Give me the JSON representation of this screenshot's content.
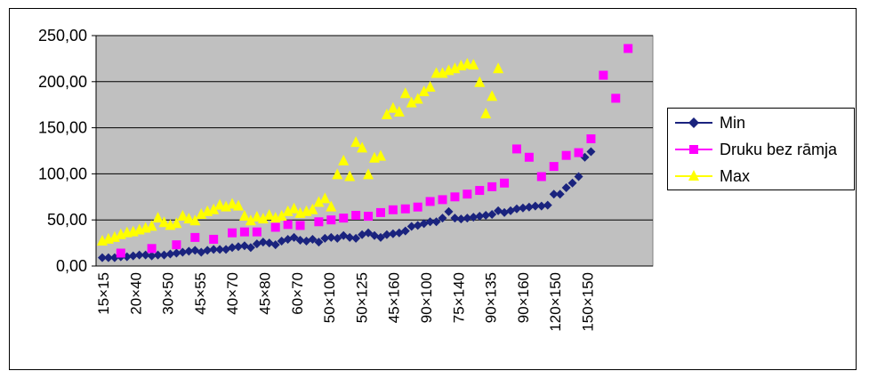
{
  "chart_data": {
    "type": "scatter",
    "title": "",
    "xlabel": "",
    "ylabel": "",
    "ylim": [
      0,
      250
    ],
    "y_ticks": [
      "0,00",
      "50,00",
      "100,00",
      "150,00",
      "200,00",
      "250,00"
    ],
    "x_tick_labels": [
      "15×15",
      "20×40",
      "30×50",
      "45×55",
      "40×70",
      "45×80",
      "60×70",
      "50×100",
      "50×125",
      "45×160",
      "90×100",
      "75×140",
      "90×135",
      "90×160",
      "120×150",
      "150×150"
    ],
    "grid": true,
    "legend_position": "right",
    "series": [
      {
        "name": "Min",
        "color": "#1a237e",
        "marker": "diamond",
        "points": [
          [
            1,
            9
          ],
          [
            2,
            9
          ],
          [
            3,
            9
          ],
          [
            4,
            10
          ],
          [
            5,
            10
          ],
          [
            6,
            11
          ],
          [
            7,
            12
          ],
          [
            8,
            12
          ],
          [
            9,
            11
          ],
          [
            10,
            12
          ],
          [
            11,
            12
          ],
          [
            12,
            13
          ],
          [
            13,
            14
          ],
          [
            14,
            15
          ],
          [
            15,
            16
          ],
          [
            16,
            17
          ],
          [
            17,
            15
          ],
          [
            18,
            17
          ],
          [
            19,
            18
          ],
          [
            20,
            18
          ],
          [
            21,
            18
          ],
          [
            22,
            20
          ],
          [
            23,
            21
          ],
          [
            24,
            22
          ],
          [
            25,
            20
          ],
          [
            26,
            24
          ],
          [
            27,
            26
          ],
          [
            28,
            25
          ],
          [
            29,
            23
          ],
          [
            30,
            27
          ],
          [
            31,
            29
          ],
          [
            32,
            31
          ],
          [
            33,
            28
          ],
          [
            34,
            27
          ],
          [
            35,
            29
          ],
          [
            36,
            26
          ],
          [
            37,
            30
          ],
          [
            38,
            31
          ],
          [
            39,
            30
          ],
          [
            40,
            33
          ],
          [
            41,
            31
          ],
          [
            42,
            30
          ],
          [
            43,
            34
          ],
          [
            44,
            36
          ],
          [
            45,
            33
          ],
          [
            46,
            31
          ],
          [
            47,
            34
          ],
          [
            48,
            35
          ],
          [
            49,
            36
          ],
          [
            50,
            38
          ],
          [
            51,
            43
          ],
          [
            52,
            44
          ],
          [
            53,
            46
          ],
          [
            54,
            48
          ],
          [
            55,
            48
          ],
          [
            56,
            52
          ],
          [
            57,
            59
          ],
          [
            58,
            52
          ],
          [
            59,
            51
          ],
          [
            60,
            52
          ],
          [
            61,
            53
          ],
          [
            62,
            54
          ],
          [
            63,
            55
          ],
          [
            64,
            56
          ],
          [
            65,
            60
          ],
          [
            66,
            58
          ],
          [
            67,
            60
          ],
          [
            68,
            62
          ],
          [
            69,
            63
          ],
          [
            70,
            64
          ],
          [
            71,
            65
          ],
          [
            72,
            65
          ],
          [
            73,
            66
          ],
          [
            74,
            78
          ],
          [
            75,
            78
          ],
          [
            76,
            85
          ],
          [
            77,
            90
          ],
          [
            78,
            97
          ],
          [
            79,
            118
          ],
          [
            80,
            124
          ]
        ]
      },
      {
        "name": "Druku bez rāmja",
        "color": "#ff00ff",
        "marker": "square",
        "points": [
          [
            4,
            14
          ],
          [
            9,
            19
          ],
          [
            13,
            23
          ],
          [
            16,
            31
          ],
          [
            19,
            29
          ],
          [
            22,
            36
          ],
          [
            24,
            37
          ],
          [
            26,
            37
          ],
          [
            29,
            42
          ],
          [
            31,
            45
          ],
          [
            33,
            44
          ],
          [
            36,
            48
          ],
          [
            38,
            50
          ],
          [
            40,
            52
          ],
          [
            42,
            55
          ],
          [
            44,
            54
          ],
          [
            46,
            58
          ],
          [
            48,
            61
          ],
          [
            50,
            62
          ],
          [
            52,
            64
          ],
          [
            54,
            70
          ],
          [
            56,
            72
          ],
          [
            58,
            75
          ],
          [
            60,
            78
          ],
          [
            62,
            82
          ],
          [
            64,
            86
          ],
          [
            66,
            90
          ],
          [
            68,
            127
          ],
          [
            70,
            118
          ],
          [
            72,
            97
          ],
          [
            74,
            108
          ],
          [
            76,
            120
          ],
          [
            78,
            123
          ],
          [
            80,
            138
          ],
          [
            82,
            207
          ],
          [
            84,
            182
          ],
          [
            86,
            236
          ]
        ]
      },
      {
        "name": "Max",
        "color": "#ffff00",
        "marker": "triangle",
        "points": [
          [
            1,
            28
          ],
          [
            2,
            30
          ],
          [
            3,
            32
          ],
          [
            4,
            35
          ],
          [
            5,
            37
          ],
          [
            6,
            38
          ],
          [
            7,
            40
          ],
          [
            8,
            42
          ],
          [
            9,
            44
          ],
          [
            10,
            53
          ],
          [
            11,
            48
          ],
          [
            12,
            45
          ],
          [
            13,
            47
          ],
          [
            14,
            55
          ],
          [
            15,
            52
          ],
          [
            16,
            50
          ],
          [
            17,
            57
          ],
          [
            18,
            60
          ],
          [
            19,
            62
          ],
          [
            20,
            67
          ],
          [
            21,
            65
          ],
          [
            22,
            68
          ],
          [
            23,
            66
          ],
          [
            24,
            55
          ],
          [
            25,
            50
          ],
          [
            26,
            54
          ],
          [
            27,
            52
          ],
          [
            28,
            56
          ],
          [
            29,
            53
          ],
          [
            30,
            55
          ],
          [
            31,
            60
          ],
          [
            32,
            63
          ],
          [
            33,
            58
          ],
          [
            34,
            60
          ],
          [
            35,
            62
          ],
          [
            36,
            70
          ],
          [
            37,
            74
          ],
          [
            38,
            65
          ],
          [
            39,
            100
          ],
          [
            40,
            115
          ],
          [
            41,
            98
          ],
          [
            42,
            135
          ],
          [
            43,
            129
          ],
          [
            44,
            100
          ],
          [
            45,
            118
          ],
          [
            46,
            120
          ],
          [
            47,
            165
          ],
          [
            48,
            172
          ],
          [
            49,
            168
          ],
          [
            50,
            188
          ],
          [
            51,
            178
          ],
          [
            52,
            182
          ],
          [
            53,
            190
          ],
          [
            54,
            195
          ],
          [
            55,
            210
          ],
          [
            56,
            210
          ],
          [
            57,
            213
          ],
          [
            58,
            215
          ],
          [
            59,
            218
          ],
          [
            60,
            220
          ],
          [
            61,
            219
          ],
          [
            62,
            200
          ],
          [
            63,
            166
          ],
          [
            64,
            185
          ],
          [
            65,
            215
          ]
        ]
      }
    ]
  }
}
